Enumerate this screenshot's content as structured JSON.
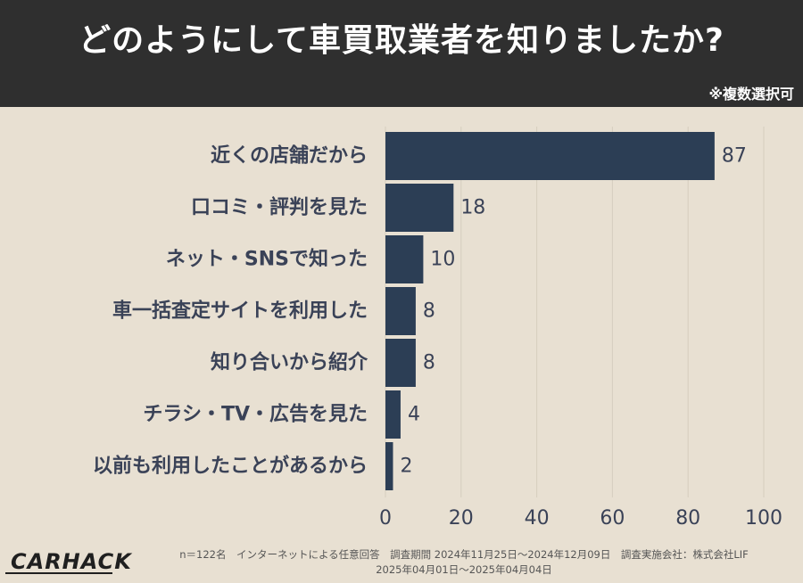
{
  "header": {
    "title": "どのようにして車買取業者を知りましたか?",
    "note": "※複数選択可"
  },
  "chart_data": {
    "type": "bar",
    "orientation": "horizontal",
    "categories": [
      "近くの店舗だから",
      "口コミ・評判を見た",
      "ネット・SNSで知った",
      "車一括査定サイトを利用した",
      "知り合いから紹介",
      "チラシ・TV・広告を見た",
      "以前も利用したことがあるから"
    ],
    "values": [
      87,
      18,
      10,
      8,
      8,
      4,
      2
    ],
    "xlim": [
      0,
      100
    ],
    "xticks": [
      0,
      20,
      40,
      60,
      80,
      100
    ],
    "grid": true,
    "bar_color": "#2c3e55"
  },
  "footer": {
    "logo": "CARHACK",
    "line1": "n＝122名　インターネットによる任意回答　調査期間 2024年11月25日〜2024年12月09日　調査実施会社：株式会社LIF",
    "line2": "2025年04月01日〜2025年04月04日"
  }
}
